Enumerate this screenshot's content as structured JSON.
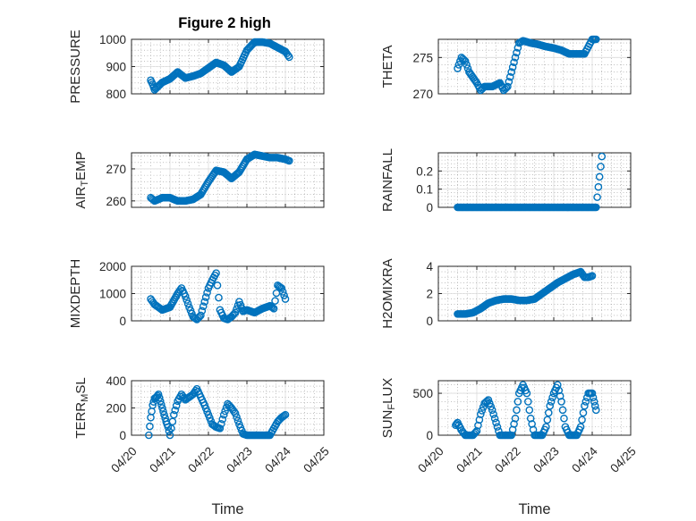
{
  "figure": {
    "title": "Figure 2 high"
  },
  "colors": {
    "marker": "#0072BD",
    "axis": "#262626",
    "grid": "#dcdcdc"
  },
  "chart_data": [
    {
      "type": "scatter",
      "id": "pressure",
      "title": "Figure 2 high",
      "ylabel_parts": [
        {
          "t": "PRESSURE"
        }
      ],
      "ylim": [
        800,
        1000
      ],
      "yticks": [
        800,
        900,
        1000
      ],
      "yticklabels": [
        "800",
        "900",
        "1000"
      ],
      "x": [
        "04/20",
        "04/21",
        "04/22",
        "04/23",
        "04/24",
        "04/25"
      ],
      "xlabel": "",
      "series": [
        {
          "points": [
            [
              0.5,
              850
            ],
            [
              0.55,
              835
            ],
            [
              0.6,
              815
            ],
            [
              0.8,
              842
            ],
            [
              1.0,
              855
            ],
            [
              1.2,
              880
            ],
            [
              1.4,
              858
            ],
            [
              1.6,
              865
            ],
            [
              1.8,
              875
            ],
            [
              2.0,
              895
            ],
            [
              2.2,
              915
            ],
            [
              2.4,
              905
            ],
            [
              2.6,
              880
            ],
            [
              2.8,
              900
            ],
            [
              3.0,
              960
            ],
            [
              3.2,
              990
            ],
            [
              3.4,
              990
            ],
            [
              3.6,
              985
            ],
            [
              3.8,
              970
            ],
            [
              4.0,
              955
            ],
            [
              4.1,
              935
            ]
          ]
        }
      ]
    },
    {
      "type": "scatter",
      "id": "theta",
      "ylabel_parts": [
        {
          "t": "THETA"
        }
      ],
      "ylim": [
        270,
        277.5
      ],
      "yticks": [
        270,
        275
      ],
      "yticklabels": [
        "270",
        "275"
      ],
      "x": [
        "04/20",
        "04/21",
        "04/22",
        "04/23",
        "04/24",
        "04/25"
      ],
      "xlabel": "",
      "series": [
        {
          "points": [
            [
              0.5,
              273.5
            ],
            [
              0.6,
              275
            ],
            [
              0.7,
              274.5
            ],
            [
              0.8,
              273
            ],
            [
              1.0,
              271.5
            ],
            [
              1.1,
              270.5
            ],
            [
              1.2,
              271
            ],
            [
              1.4,
              271
            ],
            [
              1.6,
              271.5
            ],
            [
              1.7,
              270.5
            ],
            [
              1.8,
              271
            ],
            [
              1.9,
              273
            ],
            [
              2.0,
              275
            ],
            [
              2.1,
              277
            ],
            [
              2.2,
              277.3
            ],
            [
              2.4,
              277
            ],
            [
              2.6,
              276.8
            ],
            [
              2.8,
              276.5
            ],
            [
              3.0,
              276.3
            ],
            [
              3.2,
              276
            ],
            [
              3.4,
              275.5
            ],
            [
              3.6,
              275.5
            ],
            [
              3.8,
              275.5
            ],
            [
              3.9,
              276.5
            ],
            [
              4.0,
              277.5
            ],
            [
              4.1,
              277.5
            ]
          ]
        }
      ]
    },
    {
      "type": "scatter",
      "id": "air_temp",
      "ylabel_parts": [
        {
          "t": "AIR"
        },
        {
          "t": "T",
          "sub": true
        },
        {
          "t": "EMP"
        }
      ],
      "ylim": [
        258,
        275
      ],
      "yticks": [
        260,
        270
      ],
      "yticklabels": [
        "260",
        "270"
      ],
      "x": [
        "04/20",
        "04/21",
        "04/22",
        "04/23",
        "04/24",
        "04/25"
      ],
      "xlabel": "",
      "series": [
        {
          "points": [
            [
              0.5,
              261
            ],
            [
              0.6,
              260
            ],
            [
              0.8,
              261
            ],
            [
              1.0,
              261
            ],
            [
              1.2,
              260
            ],
            [
              1.4,
              260
            ],
            [
              1.6,
              260.5
            ],
            [
              1.8,
              262
            ],
            [
              2.0,
              266
            ],
            [
              2.2,
              269.5
            ],
            [
              2.4,
              269
            ],
            [
              2.6,
              267
            ],
            [
              2.8,
              269
            ],
            [
              3.0,
              273
            ],
            [
              3.2,
              274.5
            ],
            [
              3.4,
              274
            ],
            [
              3.6,
              273.5
            ],
            [
              3.8,
              273.5
            ],
            [
              4.0,
              273
            ],
            [
              4.1,
              272.5
            ]
          ]
        }
      ]
    },
    {
      "type": "scatter",
      "id": "rainfall",
      "ylabel_parts": [
        {
          "t": "RAINFALL"
        }
      ],
      "ylim": [
        0,
        0.3
      ],
      "yticks": [
        0,
        0.1,
        0.2
      ],
      "yticklabels": [
        "0",
        "0.1",
        "0.2"
      ],
      "x": [
        "04/20",
        "04/21",
        "04/22",
        "04/23",
        "04/24",
        "04/25"
      ],
      "xlabel": "",
      "series": [
        {
          "points": [
            [
              0.5,
              0
            ],
            [
              0.7,
              0
            ],
            [
              0.9,
              0
            ],
            [
              1.1,
              0
            ],
            [
              1.3,
              0
            ],
            [
              1.5,
              0
            ],
            [
              1.7,
              0
            ],
            [
              1.9,
              0
            ],
            [
              2.1,
              0
            ],
            [
              2.3,
              0
            ],
            [
              2.5,
              0
            ],
            [
              2.7,
              0
            ],
            [
              2.9,
              0
            ],
            [
              3.1,
              0
            ],
            [
              3.3,
              0
            ],
            [
              3.5,
              0
            ],
            [
              3.7,
              0
            ],
            [
              3.9,
              0
            ],
            [
              4.1,
              0
            ],
            [
              4.25,
              0.28
            ]
          ]
        }
      ]
    },
    {
      "type": "scatter",
      "id": "mixdepth",
      "ylabel_parts": [
        {
          "t": "MIXDEPTH"
        }
      ],
      "ylim": [
        0,
        2000
      ],
      "yticks": [
        0,
        1000,
        2000
      ],
      "yticklabels": [
        "0",
        "1000",
        "2000"
      ],
      "x": [
        "04/20",
        "04/21",
        "04/22",
        "04/23",
        "04/24",
        "04/25"
      ],
      "xlabel": "",
      "series": [
        {
          "points": [
            [
              0.5,
              800
            ],
            [
              0.6,
              600
            ],
            [
              0.7,
              500
            ],
            [
              0.8,
              400
            ],
            [
              1.0,
              500
            ],
            [
              1.2,
              1000
            ],
            [
              1.3,
              1200
            ],
            [
              1.4,
              900
            ],
            [
              1.5,
              500
            ],
            [
              1.6,
              150
            ],
            [
              1.7,
              50
            ],
            [
              1.8,
              200
            ],
            [
              1.9,
              700
            ],
            [
              2.0,
              1200
            ],
            [
              2.1,
              1500
            ],
            [
              2.2,
              1750
            ],
            [
              2.3,
              400
            ],
            [
              2.4,
              100
            ],
            [
              2.5,
              50
            ],
            [
              2.6,
              150
            ],
            [
              2.7,
              300
            ],
            [
              2.8,
              700
            ],
            [
              2.9,
              350
            ],
            [
              3.0,
              400
            ],
            [
              3.2,
              300
            ],
            [
              3.4,
              450
            ],
            [
              3.6,
              550
            ],
            [
              3.7,
              450
            ],
            [
              3.8,
              1300
            ],
            [
              3.9,
              1200
            ],
            [
              4.0,
              800
            ]
          ]
        }
      ]
    },
    {
      "type": "scatter",
      "id": "h2omixra",
      "ylabel_parts": [
        {
          "t": "H2OMIXRA"
        }
      ],
      "ylim": [
        0,
        4
      ],
      "yticks": [
        0,
        2,
        4
      ],
      "yticklabels": [
        "0",
        "2",
        "4"
      ],
      "x": [
        "04/20",
        "04/21",
        "04/22",
        "04/23",
        "04/24",
        "04/25"
      ],
      "xlabel": "",
      "series": [
        {
          "points": [
            [
              0.5,
              0.5
            ],
            [
              0.7,
              0.5
            ],
            [
              0.9,
              0.6
            ],
            [
              1.1,
              0.9
            ],
            [
              1.3,
              1.3
            ],
            [
              1.5,
              1.5
            ],
            [
              1.7,
              1.6
            ],
            [
              1.9,
              1.6
            ],
            [
              2.1,
              1.5
            ],
            [
              2.3,
              1.5
            ],
            [
              2.5,
              1.6
            ],
            [
              2.7,
              2.0
            ],
            [
              2.9,
              2.4
            ],
            [
              3.1,
              2.8
            ],
            [
              3.3,
              3.1
            ],
            [
              3.5,
              3.4
            ],
            [
              3.7,
              3.6
            ],
            [
              3.8,
              3.2
            ],
            [
              3.9,
              3.2
            ],
            [
              4.0,
              3.3
            ]
          ]
        }
      ]
    },
    {
      "type": "scatter",
      "id": "terr_msl",
      "ylabel_parts": [
        {
          "t": "TERR"
        },
        {
          "t": "M",
          "sub": true
        },
        {
          "t": "SL"
        }
      ],
      "ylim": [
        0,
        400
      ],
      "yticks": [
        0,
        200,
        400
      ],
      "yticklabels": [
        "0",
        "200",
        "400"
      ],
      "x": [
        "04/20",
        "04/21",
        "04/22",
        "04/23",
        "04/24",
        "04/25"
      ],
      "xticklabels": [
        "04/20",
        "04/21",
        "04/22",
        "04/23",
        "04/24",
        "04/25"
      ],
      "xlabel": "Time",
      "series": [
        {
          "points": [
            [
              0.45,
              0
            ],
            [
              0.5,
              130
            ],
            [
              0.55,
              220
            ],
            [
              0.6,
              270
            ],
            [
              0.65,
              280
            ],
            [
              0.7,
              300
            ],
            [
              0.75,
              250
            ],
            [
              0.8,
              200
            ],
            [
              0.85,
              150
            ],
            [
              0.9,
              100
            ],
            [
              0.95,
              60
            ],
            [
              1.0,
              0
            ],
            [
              1.1,
              150
            ],
            [
              1.2,
              250
            ],
            [
              1.3,
              300
            ],
            [
              1.4,
              260
            ],
            [
              1.5,
              280
            ],
            [
              1.6,
              300
            ],
            [
              1.7,
              340
            ],
            [
              1.8,
              280
            ],
            [
              1.9,
              220
            ],
            [
              2.0,
              150
            ],
            [
              2.1,
              80
            ],
            [
              2.2,
              60
            ],
            [
              2.3,
              50
            ],
            [
              2.4,
              150
            ],
            [
              2.5,
              230
            ],
            [
              2.6,
              200
            ],
            [
              2.7,
              160
            ],
            [
              2.8,
              80
            ],
            [
              2.9,
              10
            ],
            [
              3.0,
              0
            ],
            [
              3.2,
              0
            ],
            [
              3.4,
              0
            ],
            [
              3.6,
              0
            ],
            [
              3.7,
              50
            ],
            [
              3.8,
              100
            ],
            [
              3.9,
              130
            ],
            [
              4.0,
              150
            ]
          ]
        }
      ]
    },
    {
      "type": "scatter",
      "id": "sun_flux",
      "ylabel_parts": [
        {
          "t": "SUN"
        },
        {
          "t": "F",
          "sub": true
        },
        {
          "t": "LUX"
        }
      ],
      "ylim": [
        0,
        650
      ],
      "yticks": [
        0,
        500
      ],
      "yticklabels": [
        "0",
        "500"
      ],
      "x": [
        "04/20",
        "04/21",
        "04/22",
        "04/23",
        "04/24",
        "04/25"
      ],
      "xticklabels": [
        "04/20",
        "04/21",
        "04/22",
        "04/23",
        "04/24",
        "04/25"
      ],
      "xlabel": "Time",
      "series": [
        {
          "points": [
            [
              0.45,
              120
            ],
            [
              0.5,
              150
            ],
            [
              0.6,
              60
            ],
            [
              0.7,
              0
            ],
            [
              0.8,
              0
            ],
            [
              0.9,
              0
            ],
            [
              1.0,
              50
            ],
            [
              1.1,
              250
            ],
            [
              1.2,
              380
            ],
            [
              1.3,
              420
            ],
            [
              1.4,
              300
            ],
            [
              1.5,
              150
            ],
            [
              1.6,
              0
            ],
            [
              1.7,
              0
            ],
            [
              1.8,
              0
            ],
            [
              1.9,
              0
            ],
            [
              2.0,
              200
            ],
            [
              2.1,
              500
            ],
            [
              2.2,
              600
            ],
            [
              2.3,
              500
            ],
            [
              2.4,
              200
            ],
            [
              2.5,
              0
            ],
            [
              2.6,
              0
            ],
            [
              2.7,
              0
            ],
            [
              2.8,
              100
            ],
            [
              2.9,
              350
            ],
            [
              3.0,
              500
            ],
            [
              3.1,
              600
            ],
            [
              3.2,
              400
            ],
            [
              3.3,
              100
            ],
            [
              3.4,
              0
            ],
            [
              3.5,
              0
            ],
            [
              3.6,
              0
            ],
            [
              3.7,
              100
            ],
            [
              3.8,
              350
            ],
            [
              3.9,
              500
            ],
            [
              4.0,
              500
            ],
            [
              4.05,
              400
            ],
            [
              4.1,
              300
            ]
          ]
        }
      ]
    }
  ]
}
